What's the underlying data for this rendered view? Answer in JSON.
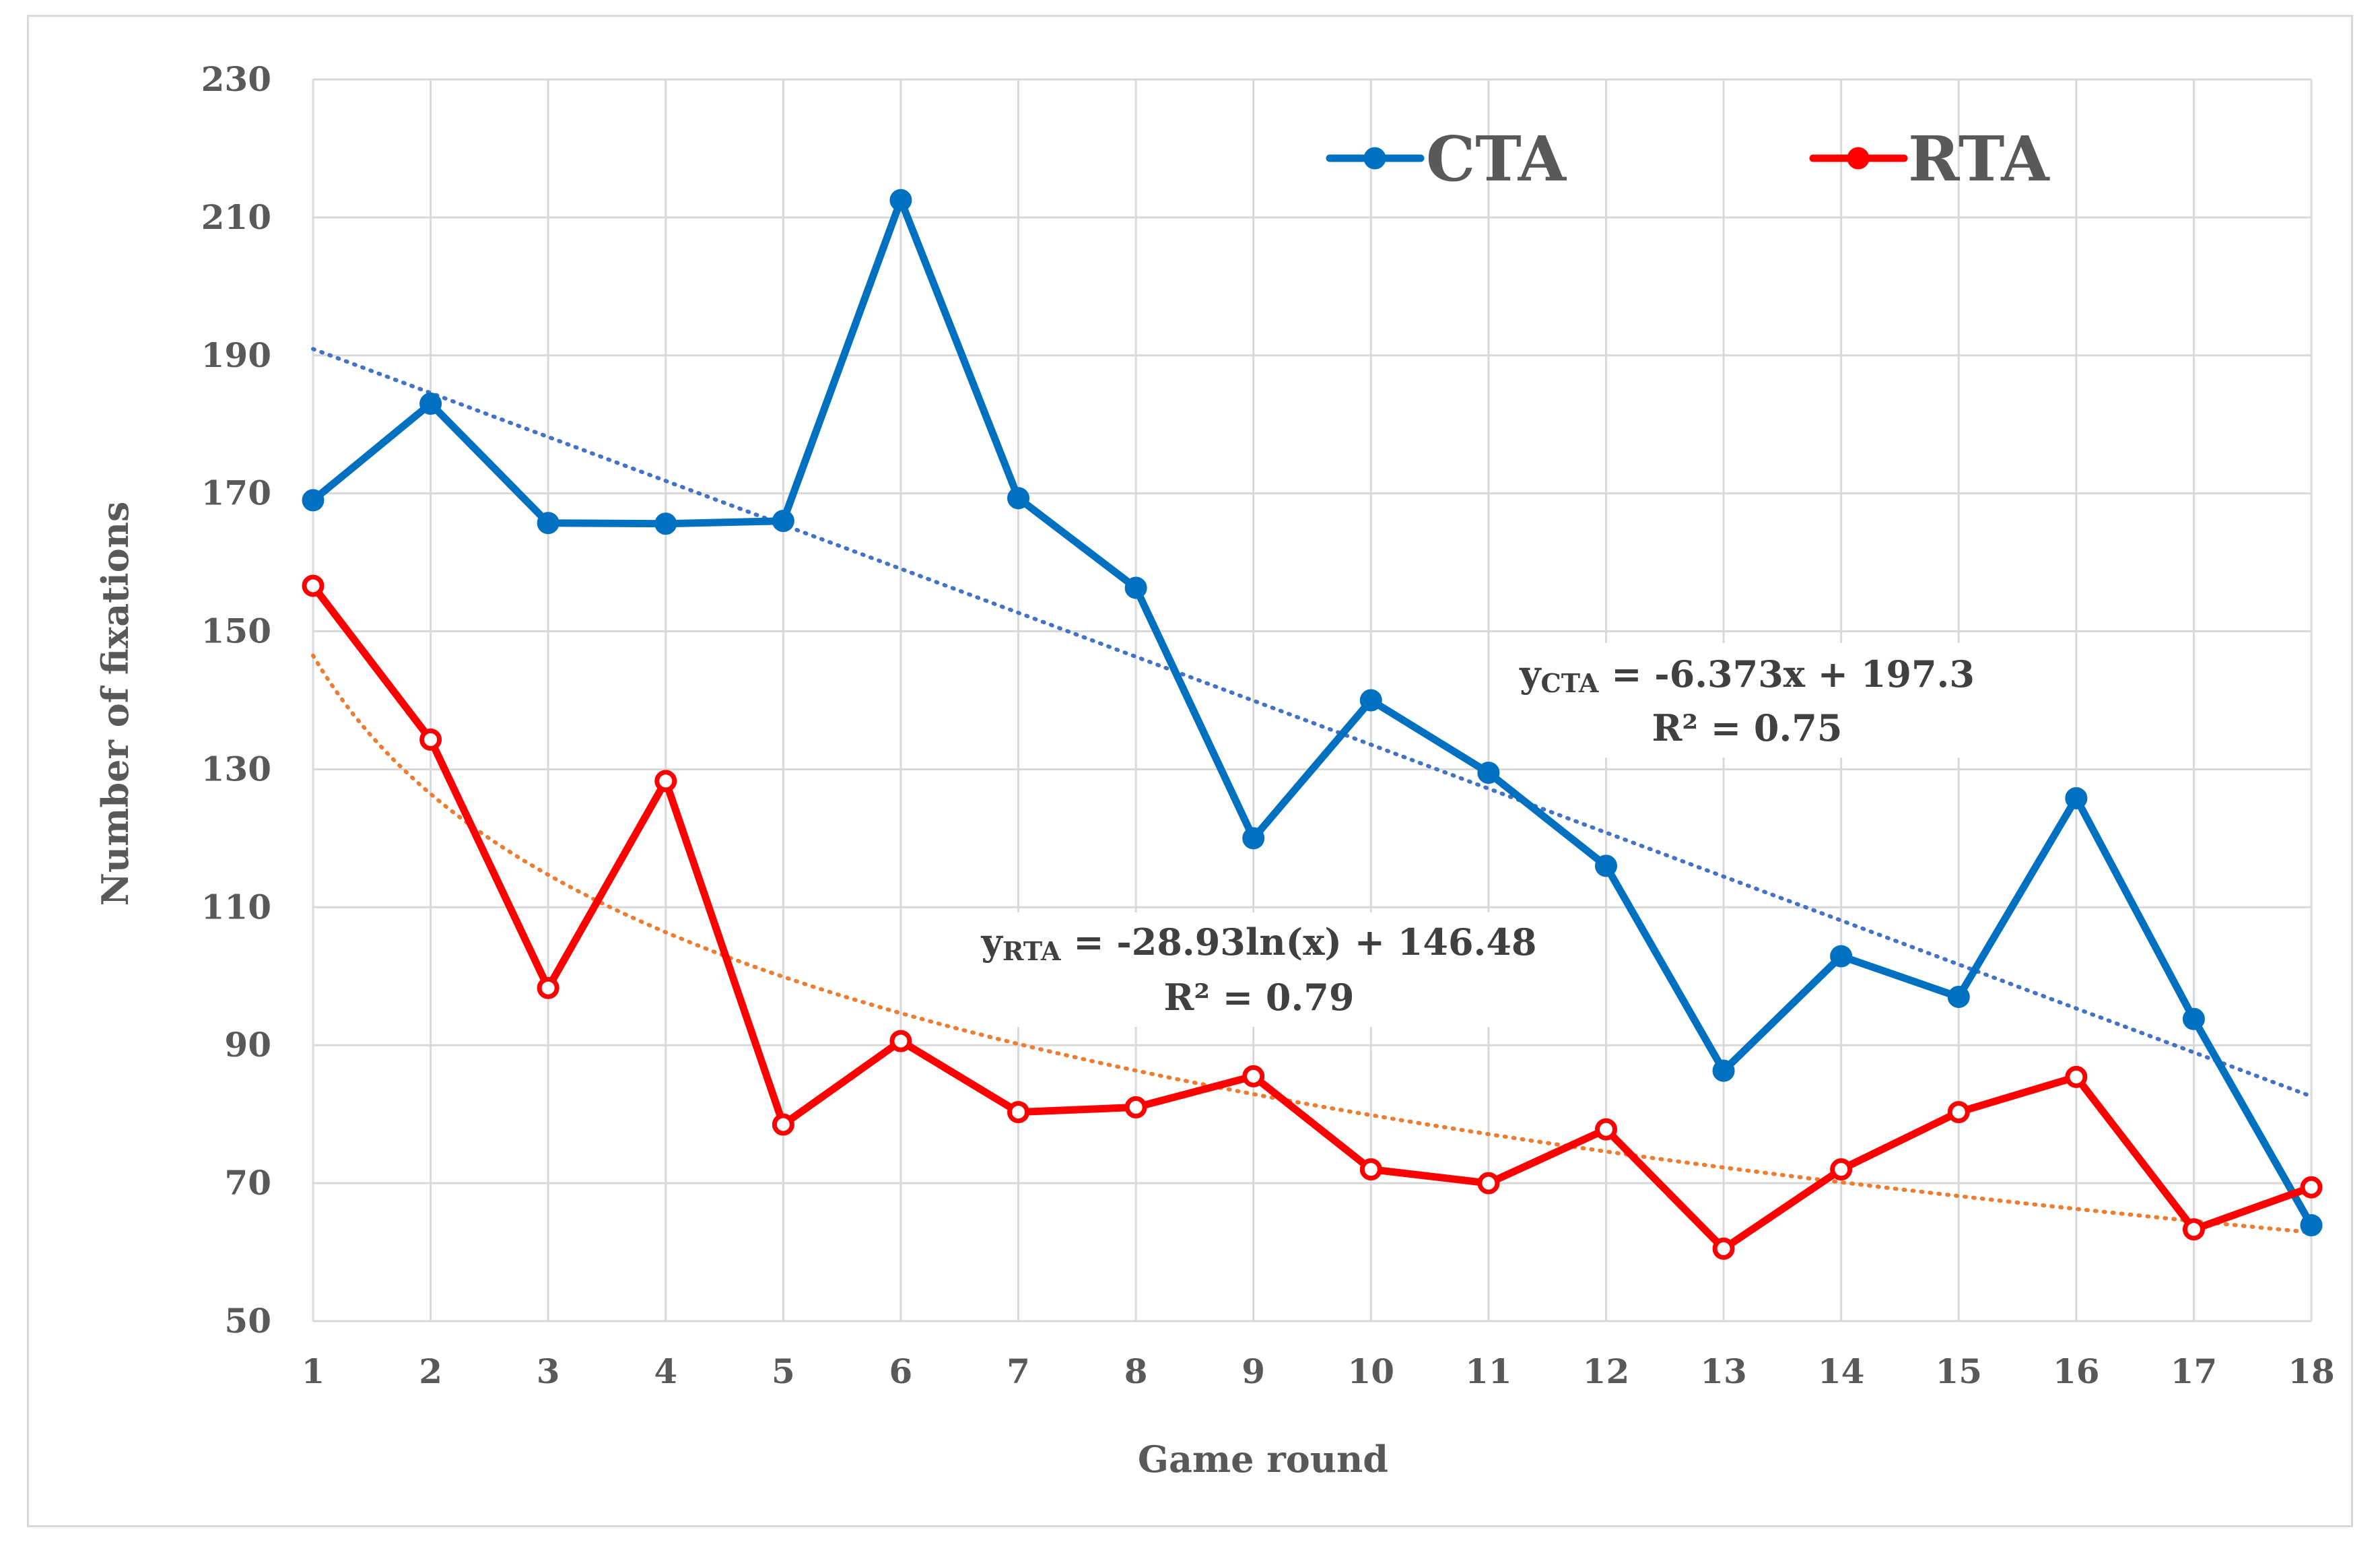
{
  "chart_data": {
    "type": "line",
    "title": "",
    "xlabel": "Game round",
    "ylabel": "Number of fixations",
    "x": [
      1,
      2,
      3,
      4,
      5,
      6,
      7,
      8,
      9,
      10,
      11,
      12,
      13,
      14,
      15,
      16,
      17,
      18
    ],
    "x_tick_labels": [
      "1",
      "2",
      "3",
      "4",
      "5",
      "6",
      "7",
      "8",
      "9",
      "10",
      "11",
      "12",
      "13",
      "14",
      "15",
      "16",
      "17",
      "18"
    ],
    "ylim": [
      50,
      230
    ],
    "y_ticks": [
      50,
      70,
      90,
      110,
      130,
      150,
      170,
      190,
      210,
      230
    ],
    "y_tick_labels": [
      "50",
      "70",
      "90",
      "110",
      "130",
      "150",
      "170",
      "190",
      "210",
      "230"
    ],
    "grid": true,
    "legend_position": "top-right",
    "series": [
      {
        "name": "CTA",
        "color": "#0070c0",
        "values": [
          169,
          183,
          165.7,
          165.6,
          166,
          212.5,
          169.3,
          156.3,
          120,
          140,
          129.5,
          116,
          86.3,
          102.9,
          97,
          125.8,
          93.8,
          63.9
        ]
      },
      {
        "name": "RTA",
        "color": "#ff0000",
        "values": [
          156.6,
          134.3,
          98.3,
          128.3,
          78.5,
          90.6,
          80.3,
          81,
          85.5,
          72,
          70,
          77.8,
          60.5,
          72,
          80.3,
          85.4,
          63.3,
          69.4
        ]
      }
    ],
    "trendlines": [
      {
        "series": "CTA",
        "kind": "linear",
        "slope": -6.373,
        "intercept": 197.3,
        "color": "#4472c4",
        "equation_prefix": "y",
        "equation_subscript": "CTA",
        "equation_rest": " = -6.373x + 197.3",
        "r2_label": "R² = 0.75"
      },
      {
        "series": "RTA",
        "kind": "logarithmic",
        "coef": -28.93,
        "intercept": 146.48,
        "color": "#ed7d31",
        "equation_prefix": "y",
        "equation_subscript": "RTA",
        "equation_rest": " = -28.93ln(x) + 146.48",
        "r2_label": "R² = 0.79"
      }
    ]
  }
}
